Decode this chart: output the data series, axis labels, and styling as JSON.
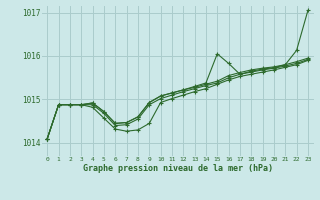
{
  "title": "Graphe pression niveau de la mer (hPa)",
  "bg_color": "#cce8e8",
  "grid_color": "#aacccc",
  "line_color": "#2d6a2d",
  "x_ticks": [
    0,
    1,
    2,
    3,
    4,
    5,
    6,
    7,
    8,
    9,
    10,
    11,
    12,
    13,
    14,
    15,
    16,
    17,
    18,
    19,
    20,
    21,
    22,
    23
  ],
  "y_ticks": [
    1014,
    1015,
    1016,
    1017
  ],
  "y_min": 1013.7,
  "y_max": 1017.15,
  "line_max": [
    1014.1,
    1014.88,
    1014.88,
    1014.88,
    1014.92,
    1014.72,
    1014.45,
    1014.47,
    1014.6,
    1014.93,
    1015.08,
    1015.15,
    1015.22,
    1015.3,
    1015.38,
    1016.05,
    1015.83,
    1015.58,
    1015.65,
    1015.7,
    1015.73,
    1015.8,
    1016.13,
    1017.05
  ],
  "line_avg1": [
    1014.1,
    1014.88,
    1014.88,
    1014.88,
    1014.92,
    1014.72,
    1014.45,
    1014.47,
    1014.6,
    1014.93,
    1015.08,
    1015.15,
    1015.22,
    1015.28,
    1015.35,
    1015.42,
    1015.55,
    1015.62,
    1015.68,
    1015.72,
    1015.75,
    1015.8,
    1015.87,
    1015.95
  ],
  "line_avg2": [
    1014.1,
    1014.88,
    1014.88,
    1014.88,
    1014.88,
    1014.68,
    1014.4,
    1014.42,
    1014.55,
    1014.88,
    1015.02,
    1015.1,
    1015.18,
    1015.25,
    1015.32,
    1015.38,
    1015.5,
    1015.58,
    1015.63,
    1015.68,
    1015.72,
    1015.77,
    1015.83,
    1015.92
  ],
  "line_min": [
    1014.1,
    1014.88,
    1014.88,
    1014.88,
    1014.82,
    1014.57,
    1014.32,
    1014.27,
    1014.3,
    1014.45,
    1014.93,
    1015.02,
    1015.1,
    1015.18,
    1015.25,
    1015.35,
    1015.45,
    1015.53,
    1015.58,
    1015.63,
    1015.68,
    1015.74,
    1015.8,
    1015.9
  ]
}
